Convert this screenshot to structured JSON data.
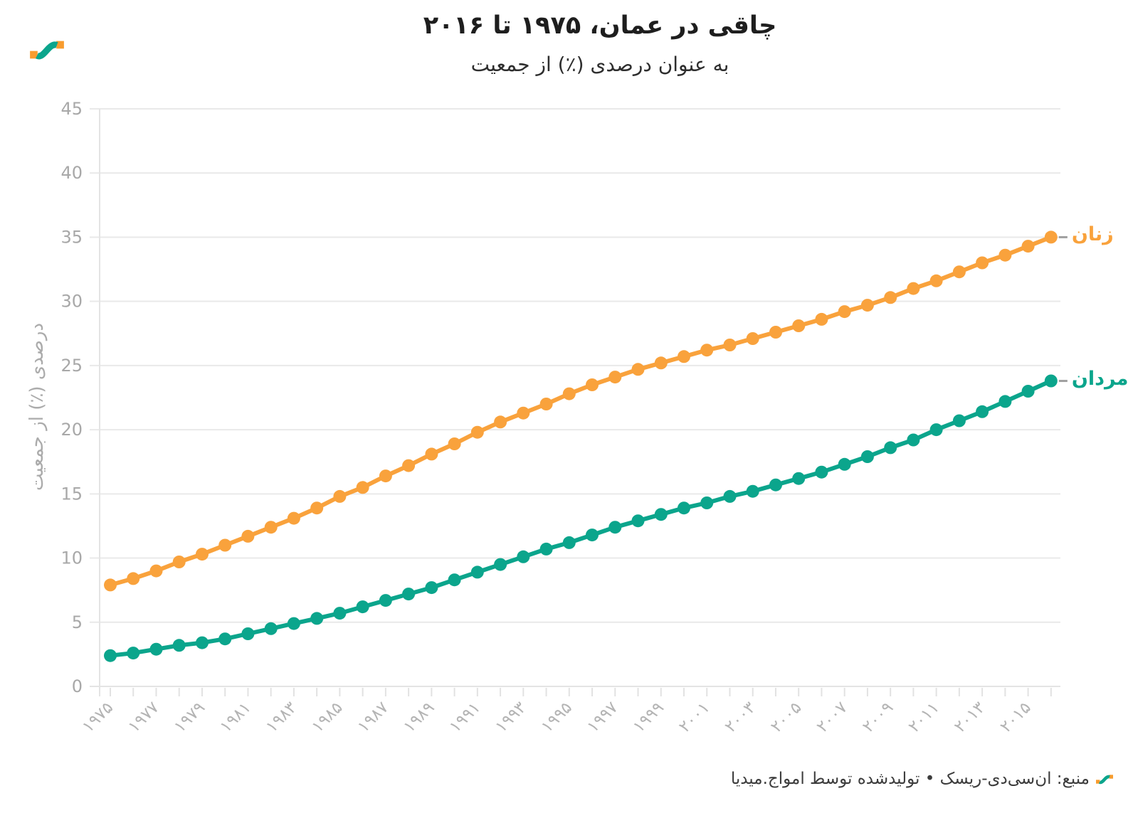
{
  "header": {
    "title": "چاقی در عمان، ۱۹۷۵ تا ۲۰۱۶",
    "subtitle": "به عنوان درصدی (٪) از جمعیت"
  },
  "footer": {
    "source_text": "منبع: ان‌سی‌دی-ریسک • تولیدشده توسط امواج.میدیا"
  },
  "colors": {
    "women": "#F9A23C",
    "men": "#0BA58C",
    "grid": "#E9E9E9",
    "axis_line": "#E4E4E4",
    "tick_mark": "#E2E2E2",
    "y_tick_text": "#A8A8A8",
    "x_tick_text": "#B4B4B4",
    "legend_dash": "#A0A0A0",
    "logo_orange": "#F89C2E",
    "logo_teal": "#0BA58C"
  },
  "chart_data": {
    "type": "line",
    "title": "چاقی در عمان، ۱۹۷۵ تا ۲۰۱۶",
    "subtitle": "به عنوان درصدی (٪) از جمعیت",
    "ylabel": "درصدی (٪) از جمعیت",
    "ylim": [
      0,
      45
    ],
    "yticks": [
      0,
      5,
      10,
      15,
      20,
      25,
      30,
      35,
      40,
      45
    ],
    "grid": "horizontal",
    "legend_position": "line-end-right",
    "x": [
      1975,
      1976,
      1977,
      1978,
      1979,
      1980,
      1981,
      1982,
      1983,
      1984,
      1985,
      1986,
      1987,
      1988,
      1989,
      1990,
      1991,
      1992,
      1993,
      1994,
      1995,
      1996,
      1997,
      1998,
      1999,
      2000,
      2001,
      2002,
      2003,
      2004,
      2005,
      2006,
      2007,
      2008,
      2009,
      2010,
      2011,
      2012,
      2013,
      2014,
      2015,
      2016
    ],
    "xtick_years": [
      1975,
      1977,
      1979,
      1981,
      1983,
      1985,
      1987,
      1989,
      1991,
      1993,
      1995,
      1997,
      1999,
      2001,
      2003,
      2005,
      2007,
      2009,
      2011,
      2013,
      2015
    ],
    "xtick_labels": [
      "۱۹۷۵",
      "۱۹۷۷",
      "۱۹۷۹",
      "۱۹۸۱",
      "۱۹۸۳",
      "۱۹۸۵",
      "۱۹۸۷",
      "۱۹۸۹",
      "۱۹۹۱",
      "۱۹۹۳",
      "۱۹۹۵",
      "۱۹۹۷",
      "۱۹۹۹",
      "۲۰۰۱",
      "۲۰۰۳",
      "۲۰۰۵",
      "۲۰۰۷",
      "۲۰۰۹",
      "۲۰۱۱",
      "۲۰۱۳",
      "۲۰۱۵"
    ],
    "series": [
      {
        "name": "زنان",
        "color": "#F9A23C",
        "values": [
          7.9,
          8.4,
          9.0,
          9.7,
          10.3,
          11.0,
          11.7,
          12.4,
          13.1,
          13.9,
          14.8,
          15.5,
          16.4,
          17.2,
          18.1,
          18.9,
          19.8,
          20.6,
          21.3,
          22.0,
          22.8,
          23.5,
          24.1,
          24.7,
          25.2,
          25.7,
          26.2,
          26.6,
          27.1,
          27.6,
          28.1,
          28.6,
          29.2,
          29.7,
          30.3,
          31.0,
          31.6,
          32.3,
          33.0,
          33.6,
          34.3,
          35.0
        ]
      },
      {
        "name": "مردان",
        "color": "#0BA58C",
        "values": [
          2.4,
          2.6,
          2.9,
          3.2,
          3.4,
          3.7,
          4.1,
          4.5,
          4.9,
          5.3,
          5.7,
          6.2,
          6.7,
          7.2,
          7.7,
          8.3,
          8.9,
          9.5,
          10.1,
          10.7,
          11.2,
          11.8,
          12.4,
          12.9,
          13.4,
          13.9,
          14.3,
          14.8,
          15.2,
          15.7,
          16.2,
          16.7,
          17.3,
          17.9,
          18.6,
          19.2,
          20.0,
          20.7,
          21.4,
          22.2,
          23.0,
          23.8
        ]
      }
    ]
  }
}
